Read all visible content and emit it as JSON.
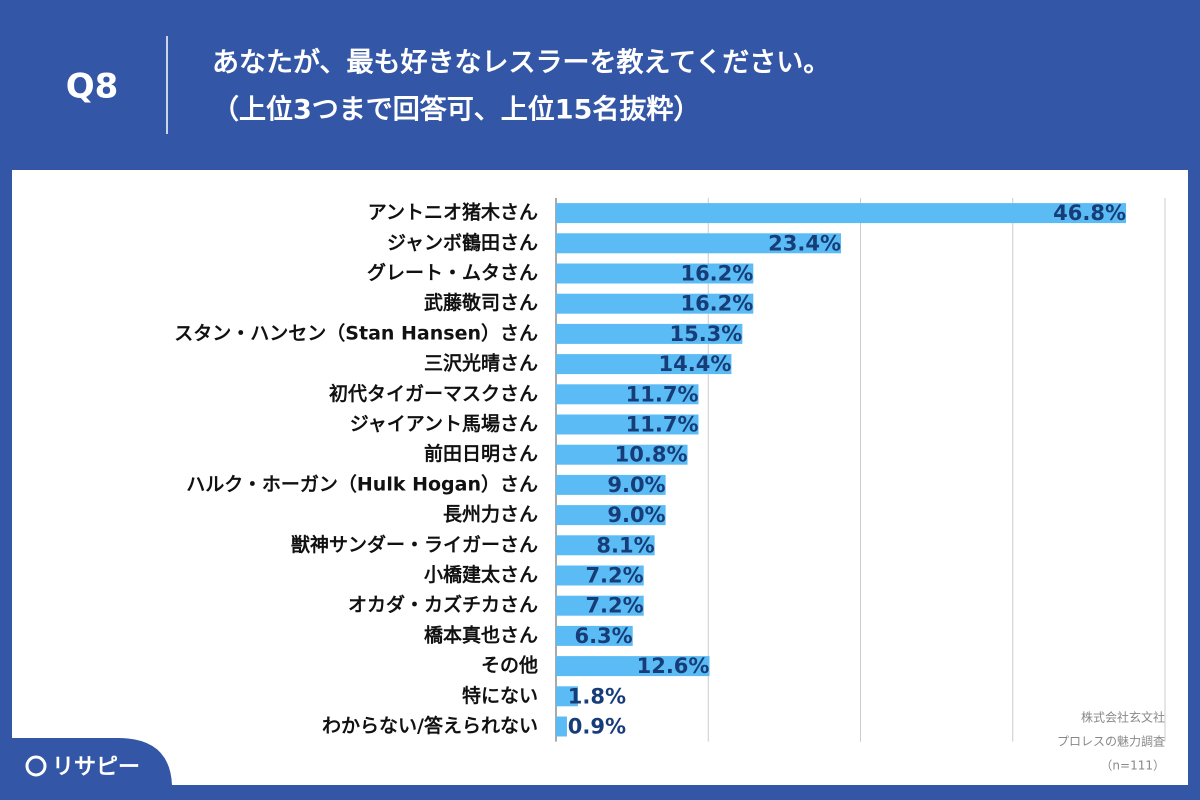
{
  "header": {
    "label": "Q8",
    "title": [
      "あなたが、最も好きなレスラーを教えてください。",
      "（上位3つまで回答可、上位15名抜粋）"
    ]
  },
  "logo": "リサピー",
  "chart_data": {
    "type": "bar",
    "orientation": "horizontal",
    "categories": [
      "アントニオ猪木さん",
      "ジャンボ鶴田さん",
      "グレート・ムタさん",
      "武藤敬司さん",
      "スタン・ハンセン（Stan Hansen）さん",
      "三沢光晴さん",
      "初代タイガーマスクさん",
      "ジャイアント馬場さん",
      "前田日明さん",
      "ハルク・ホーガン（Hulk Hogan）さん",
      "長州力さん",
      "獣神サンダー・ライガーさん",
      "小橋建太さん",
      "オカダ・カズチカさん",
      "橋本真也さん",
      "その他",
      "特にない",
      "わからない/答えられない"
    ],
    "values": [
      46.8,
      23.4,
      16.2,
      16.2,
      15.3,
      14.4,
      11.7,
      11.7,
      10.8,
      9.0,
      9.0,
      8.1,
      7.2,
      7.2,
      6.3,
      12.6,
      1.8,
      0.9
    ],
    "value_labels": [
      "46.8%",
      "23.4%",
      "16.2%",
      "16.2%",
      "15.3%",
      "14.4%",
      "11.7%",
      "11.7%",
      "10.8%",
      "9.0%",
      "9.0%",
      "8.1%",
      "7.2%",
      "7.2%",
      "6.3%",
      "12.6%",
      "1.8%",
      "0.9%"
    ],
    "color": "#5bbcf5",
    "xlim": [
      0,
      50
    ],
    "xticks": [
      0,
      12.5,
      25,
      37.5,
      50
    ],
    "grid": true,
    "source": [
      "株式会社玄文社",
      "プロレスの魅力調査",
      "（n=111）"
    ]
  }
}
